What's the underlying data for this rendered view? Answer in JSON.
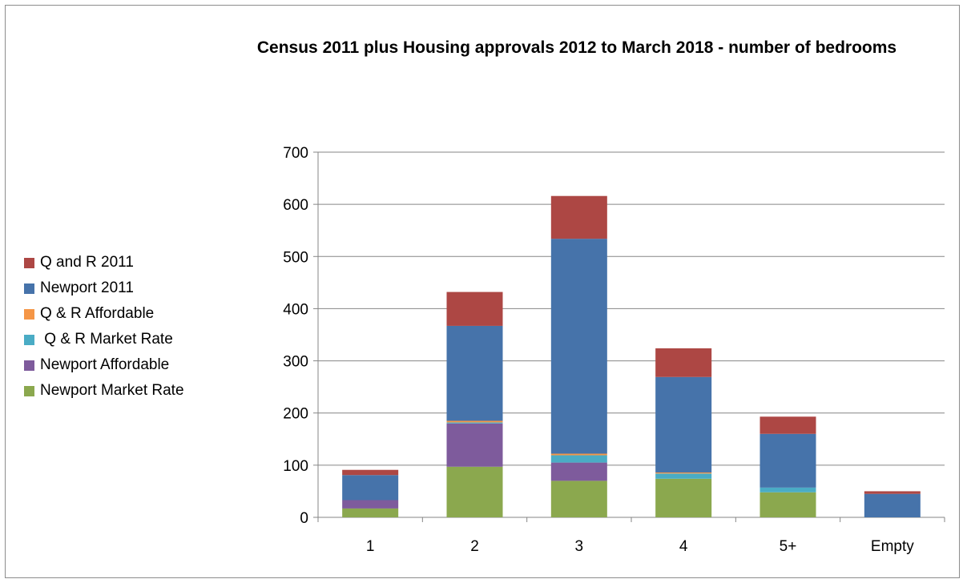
{
  "chart_data": {
    "type": "bar",
    "stacked": true,
    "title": "Census 2011 plus Housing approvals  2012 to March 2018  - number of bedrooms",
    "xlabel": "",
    "ylabel": "",
    "categories": [
      "1",
      "2",
      "3",
      "4",
      "5+",
      "Empty"
    ],
    "ylim": [
      0,
      700
    ],
    "yticks": [
      0,
      100,
      200,
      300,
      400,
      500,
      600,
      700
    ],
    "grid": true,
    "legend_position": "left",
    "series": [
      {
        "name": "Newport Market Rate",
        "color": "#8BA84E",
        "values": [
          17,
          97,
          70,
          74,
          48,
          0
        ]
      },
      {
        "name": "Newport Affordable",
        "color": "#7E5B9C",
        "values": [
          16,
          83,
          35,
          0,
          0,
          0
        ]
      },
      {
        "name": " Q & R Market Rate",
        "color": "#4AACC5",
        "values": [
          0,
          2,
          14,
          10,
          9,
          0
        ]
      },
      {
        "name": "Q & R Affordable",
        "color": "#F59646",
        "values": [
          0,
          3,
          3,
          2,
          0,
          0
        ]
      },
      {
        "name": "Newport 2011",
        "color": "#4673AA",
        "values": [
          48,
          182,
          412,
          183,
          103,
          45
        ]
      },
      {
        "name": "Q and R 2011",
        "color": "#AD4744",
        "values": [
          10,
          65,
          82,
          55,
          33,
          5
        ]
      }
    ]
  }
}
